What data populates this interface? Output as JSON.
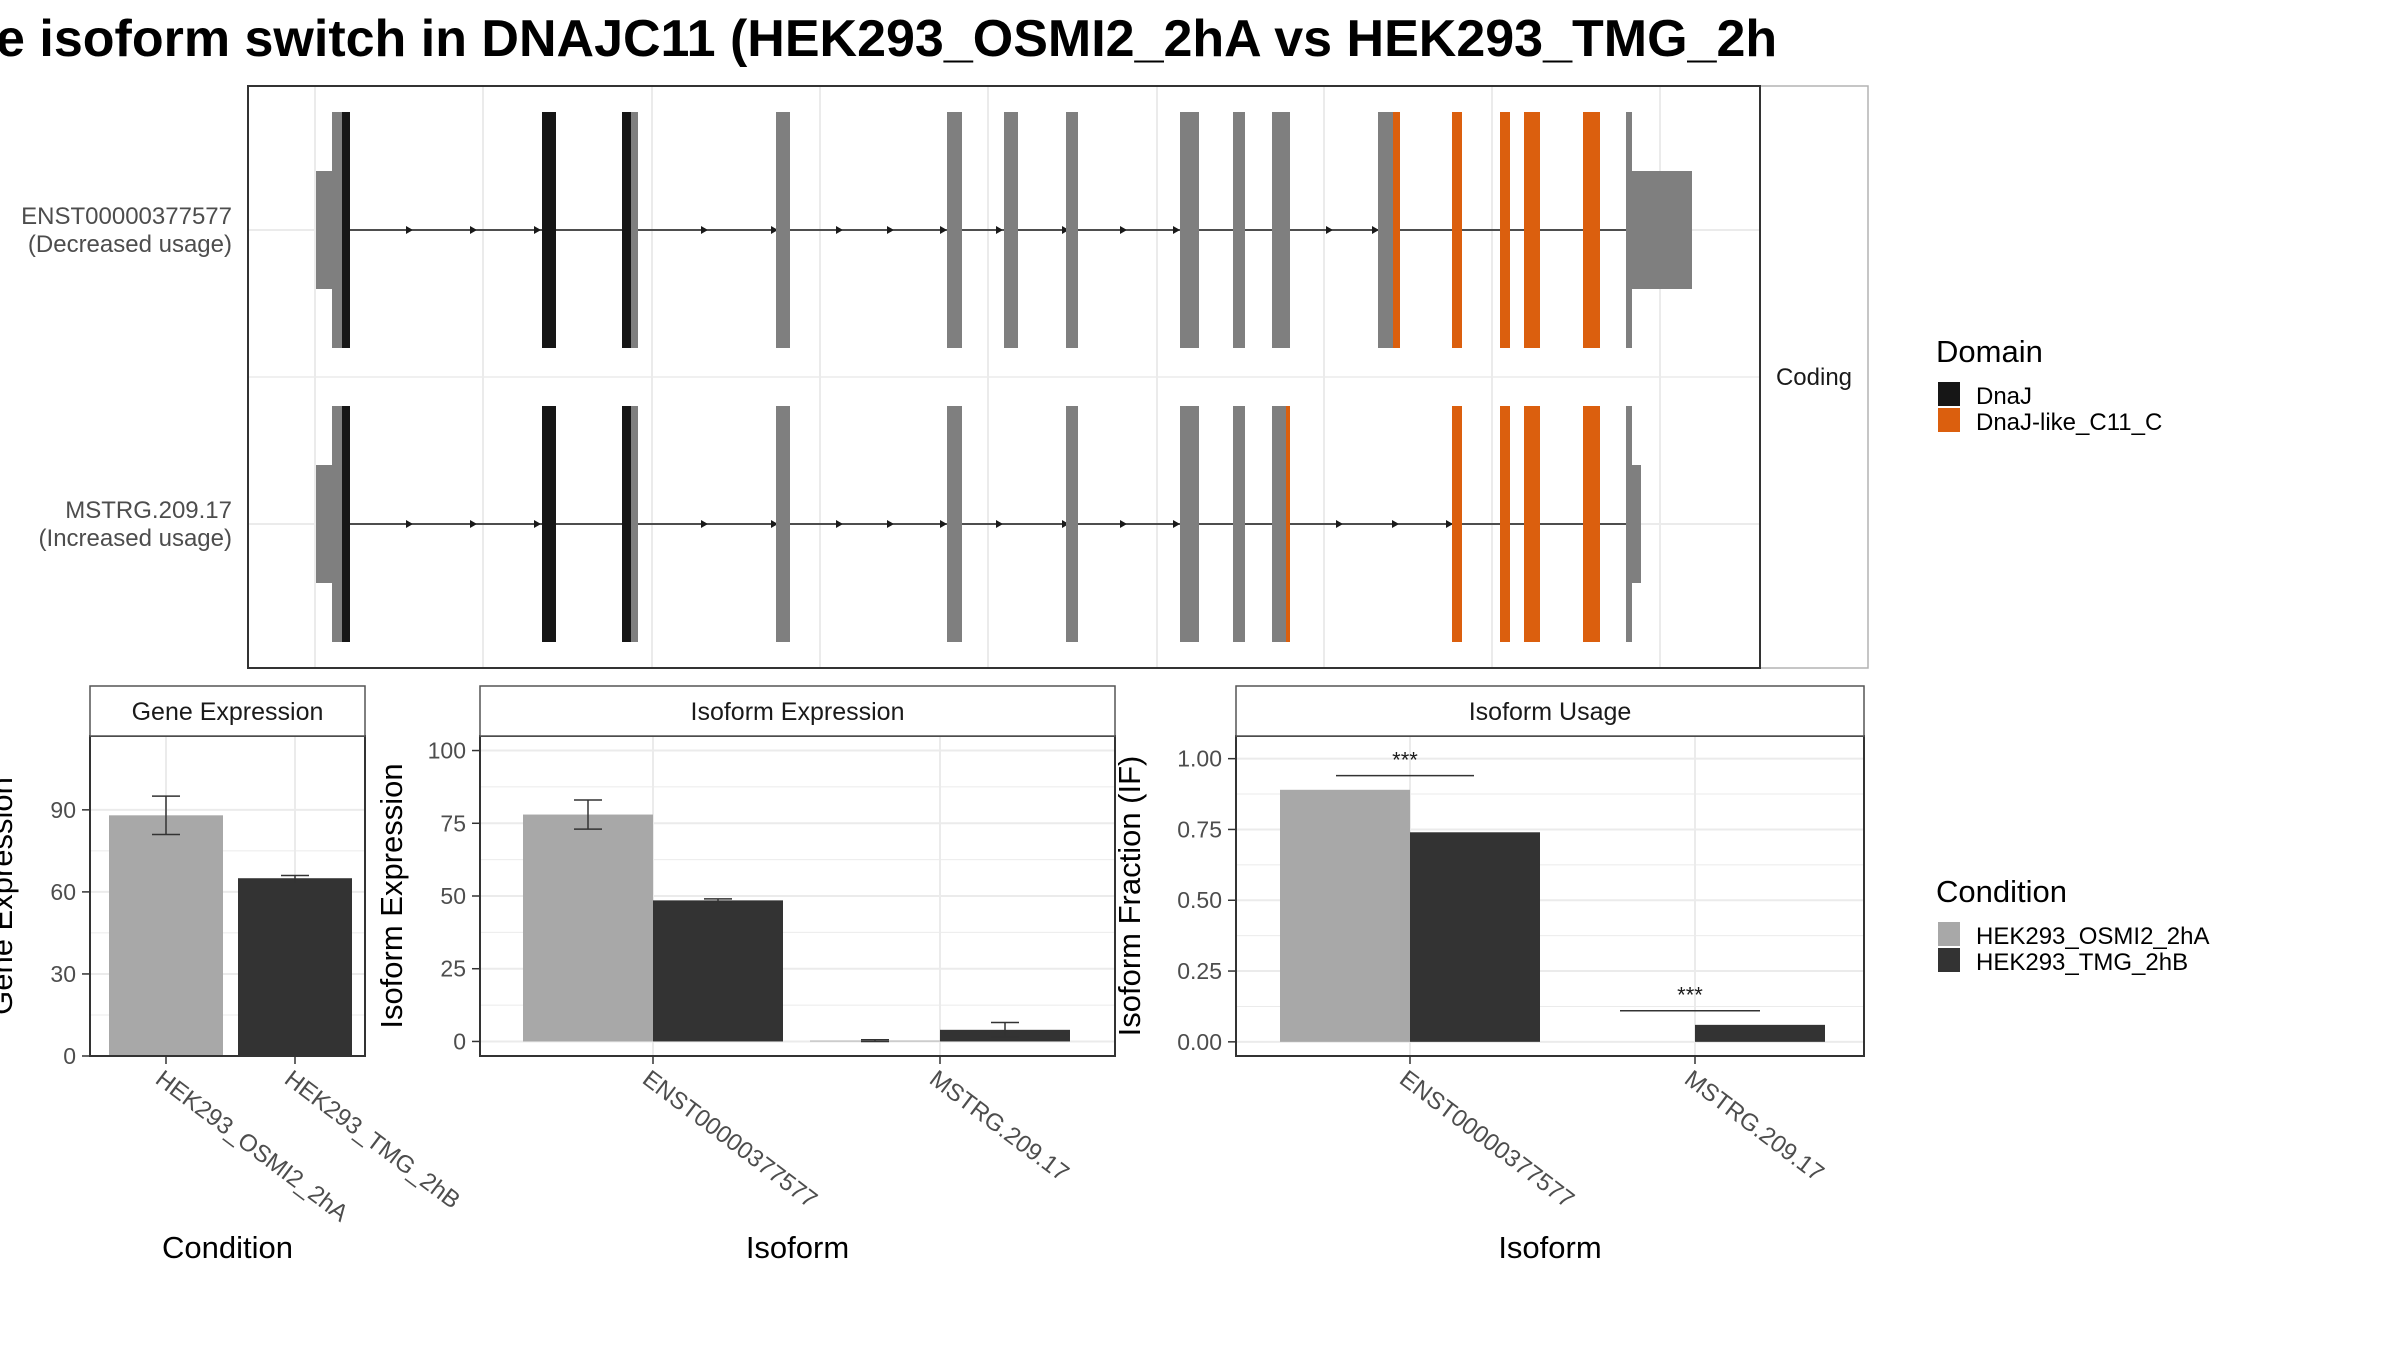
{
  "title": "e isoform switch in DNAJC11 (HEK293_OSMI2_2hA vs HEK293_TMG_2h",
  "colors": {
    "grey_exon": "#7f7f7f",
    "dnaj": "#161616",
    "dnaj_like": "#db5f0e",
    "cond_a": "#a8a8a8",
    "cond_b": "#333333",
    "grid": "#ebebeb",
    "panel_border": "#333333",
    "strip_border": "#555555"
  },
  "chart_data": [
    {
      "type": "gene-structure",
      "facet_label": "Coding",
      "isoforms": [
        {
          "label": "ENST00000377577",
          "sublabel": "(Decreased usage)"
        },
        {
          "label": "MSTRG.209.17",
          "sublabel": "(Increased usage)"
        }
      ],
      "legend": {
        "title": "Domain",
        "entries": [
          "DnaJ",
          "DnaJ-like_C11_C"
        ]
      }
    },
    {
      "type": "bar",
      "title": "Gene Expression",
      "xlabel": "Condition",
      "ylabel": "Gene Expression",
      "categories": [
        "HEK293_OSMI2_2hA",
        "HEK293_TMG_2hB"
      ],
      "values": [
        88,
        65
      ],
      "error": [
        [
          81,
          95
        ],
        [
          63,
          66
        ]
      ],
      "yticks": [
        0,
        30,
        60,
        90
      ],
      "ylim": [
        0,
        117
      ]
    },
    {
      "type": "bar",
      "title": "Isoform Expression",
      "xlabel": "Isoform",
      "ylabel": "Isoform Expression",
      "categories": [
        "ENST00000377577",
        "MSTRG.209.17"
      ],
      "series": [
        {
          "name": "HEK293_OSMI2_2hA",
          "values": [
            78,
            0.3
          ],
          "error": [
            [
              73,
              83
            ],
            [
              0,
              0.6
            ]
          ]
        },
        {
          "name": "HEK293_TMG_2hB",
          "values": [
            48.5,
            4
          ],
          "error": [
            [
              48,
              49
            ],
            [
              1.5,
              6.5
            ]
          ]
        }
      ],
      "yticks": [
        0,
        25,
        50,
        75,
        100
      ],
      "ylim": [
        -5,
        105
      ]
    },
    {
      "type": "bar",
      "title": "Isoform Usage",
      "xlabel": "Isoform",
      "ylabel": "Isoform Fraction (IF)",
      "categories": [
        "ENST00000377577",
        "MSTRG.209.17"
      ],
      "series": [
        {
          "name": "HEK293_OSMI2_2hA",
          "values": [
            0.89,
            0.0
          ]
        },
        {
          "name": "HEK293_TMG_2hB",
          "values": [
            0.74,
            0.06
          ]
        }
      ],
      "significance": [
        "***",
        "***"
      ],
      "yticks": [
        "0.00",
        "0.25",
        "0.50",
        "0.75",
        "1.00"
      ],
      "ylim": [
        -0.05,
        1.08
      ],
      "legend": {
        "title": "Condition",
        "entries": [
          "HEK293_OSMI2_2hA",
          "HEK293_TMG_2hB"
        ]
      }
    }
  ]
}
